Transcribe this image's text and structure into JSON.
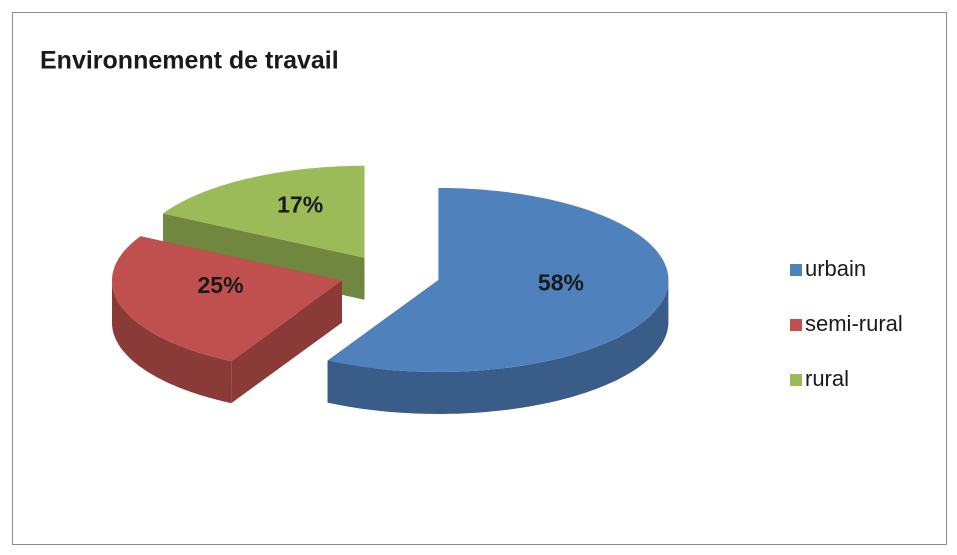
{
  "chart_data": {
    "type": "pie",
    "title": "Environnement de travail",
    "categories": [
      "urbain",
      "semi-rural",
      "rural"
    ],
    "values": [
      58,
      25,
      17
    ],
    "value_labels": [
      "58%",
      "25%",
      "17%"
    ],
    "colors": [
      "#4f81bd",
      "#c0504d",
      "#9bbb59"
    ],
    "legend": "right"
  }
}
